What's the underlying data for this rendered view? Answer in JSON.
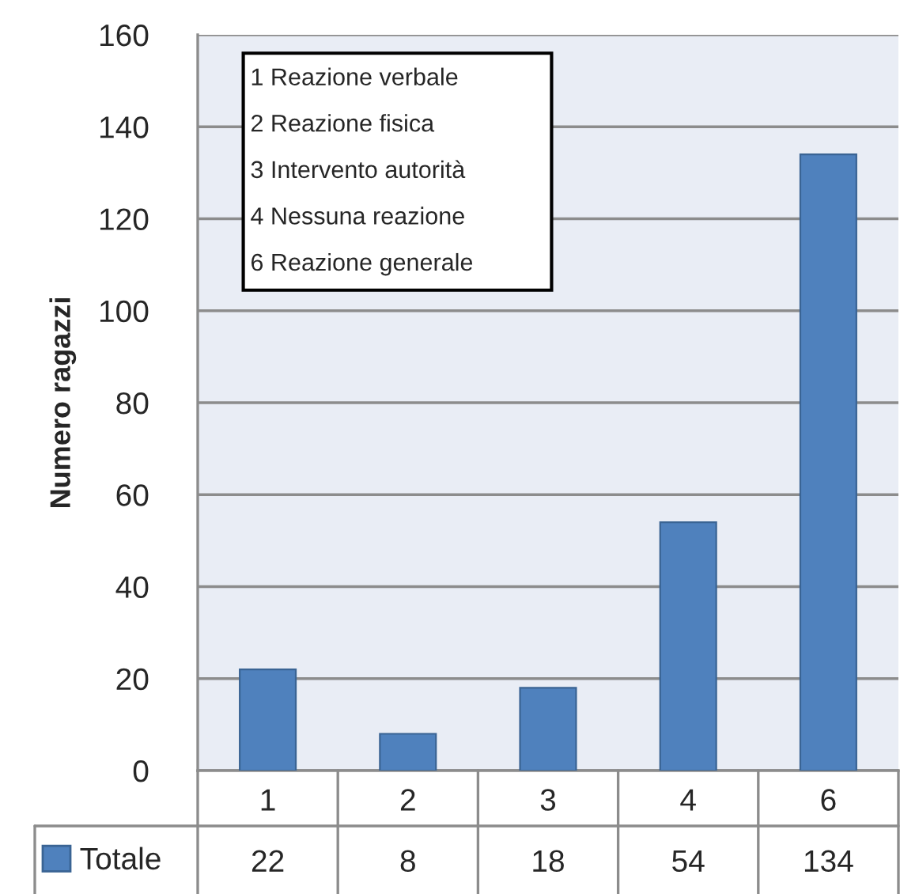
{
  "chart_data": {
    "type": "bar",
    "ylabel": "Numero ragazzi",
    "categories": [
      "1",
      "2",
      "3",
      "4",
      "6"
    ],
    "series": [
      {
        "name": "Totale",
        "color": "#4f81bd",
        "values": [
          22,
          8,
          18,
          54,
          134
        ]
      }
    ],
    "ylim": [
      0,
      160
    ],
    "yticks": [
      0,
      20,
      40,
      60,
      80,
      100,
      120,
      140,
      160
    ],
    "grid": "y",
    "data_labels": true,
    "legend": "bottom left",
    "annotations": [
      "1 Reazione verbale",
      "2 Reazione fisica",
      "3 Intervento autorità",
      "4 Nessuna reazione",
      "6 Reazione generale"
    ]
  }
}
